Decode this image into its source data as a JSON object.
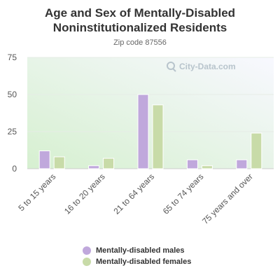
{
  "chart_data": {
    "type": "bar",
    "title": "Age and Sex of Mentally-Disabled Noninstitutionalized Residents",
    "subtitle": "Zip code 87556",
    "categories": [
      "5 to 15 years",
      "16 to 20 years",
      "21 to 64 years",
      "65 to 74 years",
      "75 years and over"
    ],
    "series": [
      {
        "name": "Mentally-disabled males",
        "values": [
          12,
          2,
          50,
          6,
          6
        ],
        "color": "#c0a8dc"
      },
      {
        "name": "Mentally-disabled females",
        "values": [
          8,
          7,
          43,
          2,
          24
        ],
        "color": "#c8dba8"
      }
    ],
    "ylim": [
      0,
      75
    ],
    "yticks": [
      "0",
      "25",
      "50",
      "75"
    ],
    "grid": true,
    "legend": "bottom",
    "watermark": "City-Data.com"
  }
}
